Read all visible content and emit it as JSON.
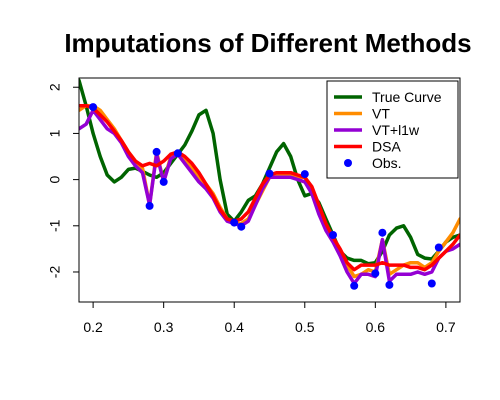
{
  "chart_data": {
    "type": "line",
    "title": "Imputations of Different Methods",
    "xlabel": "",
    "ylabel": "",
    "xlim": [
      0.18,
      0.72
    ],
    "ylim": [
      -2.65,
      2.2
    ],
    "x_ticks": [
      0.2,
      0.3,
      0.4,
      0.5,
      0.6,
      0.7
    ],
    "x_tick_labels": [
      "0.2",
      "0.3",
      "0.4",
      "0.5",
      "0.6",
      "0.7"
    ],
    "y_ticks": [
      -2,
      -1,
      0,
      1,
      2
    ],
    "y_tick_labels": [
      "-2",
      "-1",
      "0",
      "1",
      "2"
    ],
    "grid": false,
    "legend_position": "top-right",
    "series": [
      {
        "name": "True Curve",
        "color": "#006400",
        "x": [
          0.18,
          0.19,
          0.2,
          0.21,
          0.22,
          0.23,
          0.24,
          0.25,
          0.26,
          0.27,
          0.28,
          0.29,
          0.3,
          0.31,
          0.32,
          0.33,
          0.34,
          0.35,
          0.36,
          0.37,
          0.38,
          0.39,
          0.4,
          0.41,
          0.42,
          0.43,
          0.44,
          0.45,
          0.46,
          0.47,
          0.48,
          0.49,
          0.5,
          0.51,
          0.52,
          0.53,
          0.54,
          0.55,
          0.56,
          0.57,
          0.58,
          0.59,
          0.6,
          0.61,
          0.62,
          0.63,
          0.64,
          0.65,
          0.66,
          0.67,
          0.68,
          0.69,
          0.7,
          0.71,
          0.72
        ],
        "y": [
          2.15,
          1.6,
          1.0,
          0.5,
          0.1,
          -0.05,
          0.05,
          0.22,
          0.25,
          0.18,
          0.1,
          0.05,
          0.15,
          0.35,
          0.55,
          0.75,
          1.05,
          1.4,
          1.5,
          1.0,
          0.0,
          -0.75,
          -0.9,
          -0.7,
          -0.45,
          -0.35,
          -0.1,
          0.25,
          0.6,
          0.78,
          0.5,
          0.0,
          -0.35,
          -0.3,
          -0.5,
          -0.85,
          -1.2,
          -1.55,
          -1.7,
          -1.75,
          -1.75,
          -1.82,
          -1.8,
          -1.55,
          -1.2,
          -1.05,
          -1.0,
          -1.25,
          -1.62,
          -1.7,
          -1.72,
          -1.55,
          -1.35,
          -1.25,
          -1.2
        ]
      },
      {
        "name": "VT",
        "color": "#ff8c00",
        "x": [
          0.18,
          0.19,
          0.2,
          0.21,
          0.22,
          0.23,
          0.24,
          0.25,
          0.26,
          0.27,
          0.28,
          0.29,
          0.3,
          0.31,
          0.32,
          0.33,
          0.34,
          0.35,
          0.36,
          0.37,
          0.38,
          0.39,
          0.4,
          0.41,
          0.42,
          0.43,
          0.44,
          0.45,
          0.46,
          0.47,
          0.48,
          0.49,
          0.5,
          0.51,
          0.52,
          0.53,
          0.54,
          0.55,
          0.56,
          0.57,
          0.58,
          0.59,
          0.6,
          0.61,
          0.62,
          0.63,
          0.64,
          0.65,
          0.66,
          0.67,
          0.68,
          0.69,
          0.7,
          0.71,
          0.72
        ],
        "y": [
          1.5,
          1.6,
          1.6,
          1.5,
          1.3,
          1.1,
          0.85,
          0.6,
          0.4,
          0.25,
          -0.55,
          0.6,
          -0.05,
          0.5,
          0.55,
          0.4,
          0.25,
          0.05,
          -0.1,
          -0.3,
          -0.6,
          -0.85,
          -0.95,
          -0.95,
          -0.85,
          -0.55,
          -0.25,
          0.05,
          0.08,
          0.1,
          0.1,
          0.05,
          0.05,
          -0.2,
          -0.65,
          -1.0,
          -1.25,
          -1.55,
          -1.85,
          -2.1,
          -2.05,
          -1.95,
          -2.0,
          -1.3,
          -2.05,
          -1.95,
          -1.85,
          -1.8,
          -1.8,
          -1.9,
          -1.8,
          -1.55,
          -1.35,
          -1.15,
          -0.85
        ]
      },
      {
        "name": "VT+l1w",
        "color": "#9400d3",
        "x": [
          0.18,
          0.19,
          0.2,
          0.21,
          0.22,
          0.23,
          0.24,
          0.25,
          0.26,
          0.27,
          0.28,
          0.29,
          0.3,
          0.31,
          0.32,
          0.33,
          0.34,
          0.35,
          0.36,
          0.37,
          0.38,
          0.39,
          0.4,
          0.41,
          0.42,
          0.43,
          0.44,
          0.45,
          0.46,
          0.47,
          0.48,
          0.49,
          0.5,
          0.51,
          0.52,
          0.53,
          0.54,
          0.55,
          0.56,
          0.57,
          0.58,
          0.59,
          0.6,
          0.61,
          0.62,
          0.63,
          0.64,
          0.65,
          0.66,
          0.67,
          0.68,
          0.69,
          0.7,
          0.71,
          0.72
        ],
        "y": [
          1.1,
          1.2,
          1.5,
          1.3,
          1.1,
          1.0,
          0.8,
          0.5,
          0.3,
          0.15,
          -0.55,
          0.55,
          -0.05,
          0.45,
          0.55,
          0.35,
          0.15,
          -0.05,
          -0.2,
          -0.4,
          -0.7,
          -0.9,
          -0.95,
          -1.0,
          -0.9,
          -0.55,
          -0.2,
          0.05,
          0.05,
          0.05,
          0.05,
          0.0,
          -0.05,
          -0.3,
          -0.75,
          -1.1,
          -1.35,
          -1.65,
          -2.0,
          -2.25,
          -2.05,
          -2.05,
          -2.1,
          -1.3,
          -2.2,
          -2.05,
          -2.05,
          -2.05,
          -2.0,
          -2.05,
          -2.0,
          -1.7,
          -1.55,
          -1.5,
          -1.4
        ]
      },
      {
        "name": "DSA",
        "color": "#ff0000",
        "x": [
          0.18,
          0.19,
          0.2,
          0.21,
          0.22,
          0.23,
          0.24,
          0.25,
          0.26,
          0.27,
          0.28,
          0.29,
          0.3,
          0.31,
          0.32,
          0.33,
          0.34,
          0.35,
          0.36,
          0.37,
          0.38,
          0.39,
          0.4,
          0.41,
          0.42,
          0.43,
          0.44,
          0.45,
          0.46,
          0.47,
          0.48,
          0.49,
          0.5,
          0.51,
          0.52,
          0.53,
          0.54,
          0.55,
          0.56,
          0.57,
          0.58,
          0.59,
          0.6,
          0.61,
          0.62,
          0.63,
          0.64,
          0.65,
          0.66,
          0.67,
          0.68,
          0.69,
          0.7,
          0.71,
          0.72
        ],
        "y": [
          1.6,
          1.6,
          1.55,
          1.4,
          1.25,
          1.05,
          0.85,
          0.6,
          0.4,
          0.3,
          0.35,
          0.3,
          0.4,
          0.55,
          0.6,
          0.5,
          0.35,
          0.15,
          -0.1,
          -0.35,
          -0.65,
          -0.85,
          -0.9,
          -0.85,
          -0.7,
          -0.4,
          -0.1,
          0.1,
          0.15,
          0.15,
          0.15,
          0.1,
          0.05,
          -0.15,
          -0.55,
          -0.95,
          -1.25,
          -1.5,
          -1.8,
          -1.95,
          -1.85,
          -1.85,
          -1.85,
          -1.8,
          -1.85,
          -1.85,
          -1.85,
          -1.9,
          -1.9,
          -1.95,
          -1.85,
          -1.7,
          -1.55,
          -1.4,
          -1.2
        ]
      }
    ],
    "observations": {
      "name": "Obs.",
      "color": "#0000ff",
      "x": [
        0.2,
        0.28,
        0.29,
        0.3,
        0.32,
        0.4,
        0.41,
        0.45,
        0.5,
        0.54,
        0.57,
        0.6,
        0.61,
        0.62,
        0.68,
        0.69
      ],
      "y": [
        1.57,
        -0.57,
        0.6,
        -0.05,
        0.57,
        -0.93,
        -1.02,
        0.13,
        0.12,
        -1.2,
        -2.3,
        -2.03,
        -1.15,
        -2.28,
        -2.25,
        -1.47
      ]
    }
  }
}
